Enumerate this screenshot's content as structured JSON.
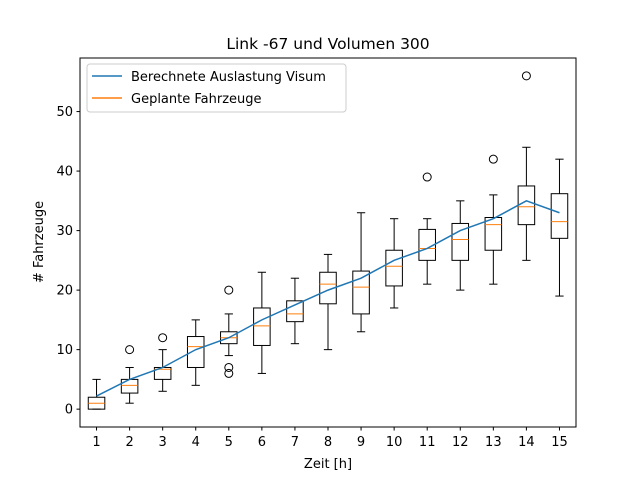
{
  "chart_data": {
    "type": "box",
    "title": "Link -67 und Volumen 300",
    "xlabel": "Zeit [h]",
    "ylabel": "# Fahrzeuge",
    "categories": [
      "1",
      "2",
      "3",
      "4",
      "5",
      "6",
      "7",
      "8",
      "9",
      "10",
      "11",
      "12",
      "13",
      "14",
      "15"
    ],
    "ylim": [
      -3,
      59
    ],
    "yticks": [
      0,
      10,
      20,
      30,
      40,
      50
    ],
    "grid": false,
    "legend_position": "top-left",
    "boxes": [
      {
        "whislo": 0,
        "q1": 0,
        "med": 1,
        "q3": 2,
        "whishi": 5,
        "fliers": []
      },
      {
        "whislo": 1,
        "q1": 2.7,
        "med": 4,
        "q3": 5,
        "whishi": 7,
        "fliers": [
          10
        ]
      },
      {
        "whislo": 3,
        "q1": 5,
        "med": 6.7,
        "q3": 7,
        "whishi": 10,
        "fliers": [
          12
        ]
      },
      {
        "whislo": 4,
        "q1": 7,
        "med": 10.5,
        "q3": 12.2,
        "whishi": 15,
        "fliers": []
      },
      {
        "whislo": 9,
        "q1": 11,
        "med": 12,
        "q3": 13,
        "whishi": 16,
        "fliers": [
          20,
          7,
          6
        ]
      },
      {
        "whislo": 6,
        "q1": 10.7,
        "med": 14,
        "q3": 17,
        "whishi": 23,
        "fliers": []
      },
      {
        "whislo": 11,
        "q1": 14.7,
        "med": 16,
        "q3": 18.2,
        "whishi": 22,
        "fliers": []
      },
      {
        "whislo": 10,
        "q1": 17.7,
        "med": 21,
        "q3": 23,
        "whishi": 26,
        "fliers": []
      },
      {
        "whislo": 13,
        "q1": 16,
        "med": 20.5,
        "q3": 23.2,
        "whishi": 33,
        "fliers": []
      },
      {
        "whislo": 17,
        "q1": 20.7,
        "med": 24,
        "q3": 26.7,
        "whishi": 32,
        "fliers": []
      },
      {
        "whislo": 21,
        "q1": 25,
        "med": 27,
        "q3": 30.2,
        "whishi": 32,
        "fliers": [
          39
        ]
      },
      {
        "whislo": 20,
        "q1": 25,
        "med": 28.5,
        "q3": 31.2,
        "whishi": 35,
        "fliers": []
      },
      {
        "whislo": 21,
        "q1": 26.7,
        "med": 31,
        "q3": 32.2,
        "whishi": 36,
        "fliers": [
          42
        ]
      },
      {
        "whislo": 25,
        "q1": 31,
        "med": 34,
        "q3": 37.5,
        "whishi": 44,
        "fliers": [
          56
        ]
      },
      {
        "whislo": 19,
        "q1": 28.7,
        "med": 31.5,
        "q3": 36.2,
        "whishi": 42,
        "fliers": []
      }
    ],
    "series": [
      {
        "name": "Berechnete Auslastung Visum",
        "color": "#1f77b4",
        "values": [
          2.2,
          5,
          7,
          10,
          12,
          15,
          17.5,
          20,
          22,
          25,
          27,
          30,
          32,
          35,
          33
        ]
      },
      {
        "name": "Geplante Fahrzeuge",
        "color": "#ff7f0e"
      }
    ]
  }
}
